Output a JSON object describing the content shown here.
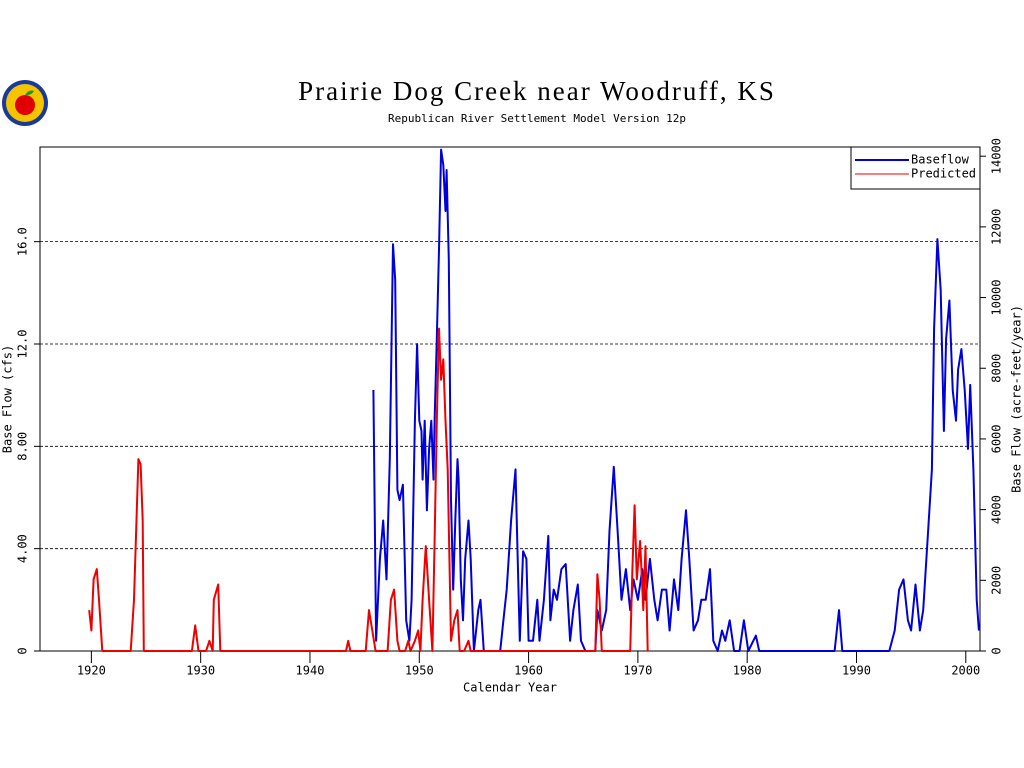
{
  "chart_data": {
    "type": "line",
    "title": "Prairie Dog Creek near Woodruff, KS",
    "subtitle": "Republican River Settlement Model Version 12p",
    "xlabel": "Calendar Year",
    "ylabel": "Base Flow (cfs)",
    "y2label": "Base Flow (acre-feet/year)",
    "xlim": [
      1915.3,
      2001.3
    ],
    "xticks": [
      1920,
      1930,
      1940,
      1950,
      1960,
      1970,
      1980,
      1990,
      2000
    ],
    "ylim": [
      0,
      19.7
    ],
    "yticks": [
      0,
      {
        "value": 4,
        "label": "4.00"
      },
      {
        "value": 8,
        "label": "8.00"
      },
      {
        "value": 12,
        "label": "12.0"
      },
      {
        "value": 16,
        "label": "16.0"
      }
    ],
    "y2lim": [
      0,
      14260
    ],
    "y2ticks": [
      0,
      2000,
      4000,
      6000,
      8000,
      10000,
      12000,
      14000
    ],
    "grid": true,
    "legend": "upper right",
    "series": [
      {
        "name": "Baseflow",
        "color": "#0000dd",
        "x": [
          1945.8,
          1946.05,
          1946.4,
          1946.7,
          1947.0,
          1947.3,
          1947.6,
          1947.8,
          1948.0,
          1948.2,
          1948.5,
          1948.8,
          1949.1,
          1949.3,
          1949.6,
          1949.8,
          1950.0,
          1950.2,
          1950.3,
          1950.5,
          1950.7,
          1950.9,
          1951.1,
          1951.3,
          1951.4,
          1951.6,
          1951.8,
          1952.0,
          1952.2,
          1952.4,
          1952.5,
          1952.7,
          1952.9,
          1953.1,
          1953.3,
          1953.5,
          1953.6,
          1953.8,
          1954.0,
          1954.2,
          1954.5,
          1954.7,
          1955.0,
          1955.4,
          1955.6,
          1955.9,
          1957.4,
          1957.7,
          1958.0,
          1958.4,
          1958.8,
          1959.0,
          1959.2,
          1959.5,
          1959.8,
          1960.0,
          1960.4,
          1960.8,
          1961.0,
          1961.4,
          1961.8,
          1962.0,
          1962.3,
          1962.6,
          1963.0,
          1963.4,
          1963.8,
          1964.1,
          1964.5,
          1964.8,
          1965.2,
          1966.1,
          1966.3,
          1966.7,
          1967.1,
          1967.4,
          1967.8,
          1968.2,
          1968.5,
          1968.9,
          1969.3,
          1969.6,
          1970.0,
          1970.4,
          1970.7,
          1971.1,
          1971.5,
          1971.8,
          1972.2,
          1972.6,
          1972.9,
          1973.3,
          1973.7,
          1974.0,
          1974.4,
          1974.7,
          1975.1,
          1975.5,
          1975.8,
          1976.2,
          1976.6,
          1976.9,
          1977.3,
          1977.7,
          1978.0,
          1978.4,
          1978.8,
          1979.3,
          1979.7,
          1980.1,
          1980.8,
          1981.1,
          1988.0,
          1988.4,
          1988.7,
          1993.0,
          1993.5,
          1993.9,
          1994.3,
          1994.7,
          1995.0,
          1995.4,
          1995.8,
          1996.1,
          1996.5,
          1996.9,
          1997.1,
          1997.4,
          1997.7,
          1998.0,
          1998.2,
          1998.5,
          1998.8,
          1999.1,
          1999.3,
          1999.6,
          1999.9,
          2000.2,
          2000.4,
          2000.7,
          2001.0,
          2001.2
        ],
        "values": [
          10.2,
          0.4,
          3.6,
          5.1,
          2.8,
          7.5,
          15.9,
          14.5,
          6.3,
          5.9,
          6.5,
          1.2,
          0.4,
          2.0,
          9.0,
          12.0,
          9.0,
          8.6,
          6.7,
          9.0,
          5.5,
          7.9,
          9.0,
          6.7,
          9.0,
          12.2,
          15.7,
          19.6,
          19.0,
          17.2,
          18.8,
          15.3,
          5.9,
          2.4,
          5.1,
          7.5,
          6.7,
          2.8,
          1.2,
          3.6,
          5.1,
          3.6,
          0,
          1.6,
          2.0,
          0,
          0,
          1.2,
          2.4,
          5.1,
          7.1,
          3.6,
          0.4,
          3.9,
          3.6,
          0.4,
          0.4,
          2.0,
          0.4,
          2.0,
          4.5,
          1.2,
          2.4,
          2.0,
          3.2,
          3.4,
          0.4,
          1.6,
          2.6,
          0.4,
          0,
          0,
          1.6,
          0.8,
          1.6,
          4.7,
          7.2,
          4.3,
          2.0,
          3.2,
          1.6,
          2.8,
          2.0,
          3.2,
          2.0,
          3.6,
          2.0,
          1.2,
          2.4,
          2.4,
          0.8,
          2.8,
          1.6,
          3.6,
          5.5,
          3.6,
          0.8,
          1.2,
          2.0,
          2.0,
          3.2,
          0.4,
          0,
          0.8,
          0.4,
          1.2,
          0,
          0,
          1.2,
          0,
          0.6,
          0,
          0,
          1.6,
          0,
          0,
          0.8,
          2.4,
          2.8,
          1.2,
          0.8,
          2.6,
          0.8,
          1.6,
          4.3,
          7.1,
          12.6,
          16.1,
          14.1,
          8.6,
          12.2,
          13.7,
          10.2,
          9.0,
          11.0,
          11.8,
          10.2,
          7.9,
          10.4,
          7.1,
          2.0,
          0.8
        ]
      },
      {
        "name": "Predicted",
        "color": "#ee0000",
        "x": [
          1919.8,
          1920.0,
          1920.2,
          1920.5,
          1920.7,
          1921.0,
          1923.6,
          1923.9,
          1924.3,
          1924.5,
          1924.7,
          1924.8,
          1929.2,
          1929.5,
          1929.8,
          1930.5,
          1930.8,
          1931.1,
          1931.2,
          1931.6,
          1931.8,
          1943.3,
          1943.5,
          1943.7,
          1945.1,
          1945.4,
          1945.7,
          1946.0,
          1947.1,
          1947.4,
          1947.7,
          1948.0,
          1948.2,
          1948.7,
          1949.0,
          1949.2,
          1949.6,
          1949.9,
          1950.1,
          1950.3,
          1950.6,
          1950.9,
          1951.2,
          1951.4,
          1951.6,
          1951.8,
          1952.0,
          1952.2,
          1952.4,
          1952.6,
          1952.9,
          1953.2,
          1953.5,
          1953.7,
          1954.1,
          1954.5,
          1954.7,
          1966.1,
          1966.3,
          1966.5,
          1966.7,
          1969.3,
          1969.5,
          1969.7,
          1969.9,
          1970.2,
          1970.5,
          1970.7,
          1970.9
        ],
        "values": [
          1.6,
          0.8,
          2.8,
          3.2,
          2.0,
          0,
          0,
          2.0,
          7.5,
          7.3,
          5.1,
          0,
          0,
          1.0,
          0,
          0,
          0.4,
          0,
          2.0,
          2.6,
          0,
          0,
          0.4,
          0,
          0,
          1.6,
          0.8,
          0,
          0,
          2.0,
          2.4,
          0.4,
          0,
          0,
          0.4,
          0,
          0.4,
          0.8,
          0,
          2.0,
          4.1,
          2.0,
          0,
          4.3,
          9.0,
          12.6,
          10.6,
          11.4,
          9.0,
          7.1,
          0.4,
          1.2,
          1.6,
          0,
          0,
          0.4,
          0,
          0,
          3.0,
          2.0,
          0,
          0,
          3.2,
          5.7,
          2.8,
          4.3,
          1.6,
          4.1,
          0
        ]
      }
    ]
  }
}
